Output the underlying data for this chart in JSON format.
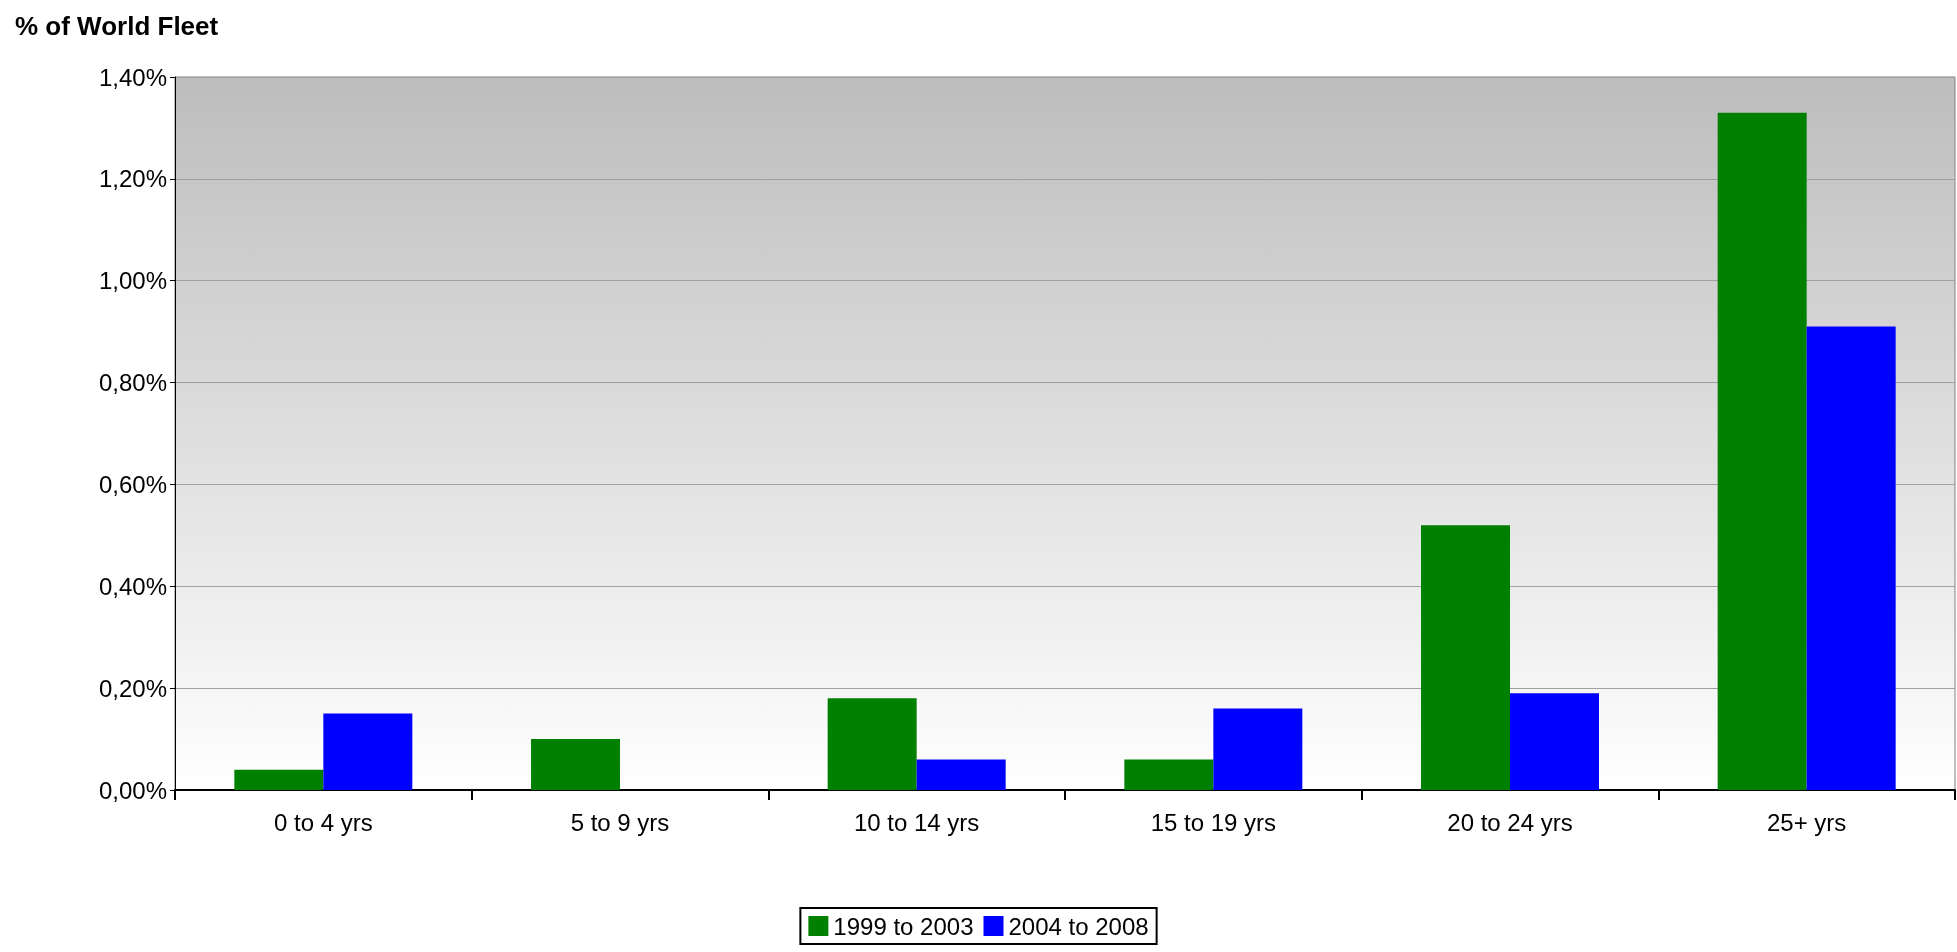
{
  "chart_data": {
    "type": "bar",
    "ylabel": "% of World Fleet",
    "categories": [
      "0 to 4 yrs",
      "5 to 9 yrs",
      "10 to 14 yrs",
      "15 to 19 yrs",
      "20 to 24 yrs",
      "25+ yrs"
    ],
    "series": [
      {
        "name": "1999 to 2003",
        "color": "#008000",
        "values": [
          0.04,
          0.1,
          0.18,
          0.06,
          0.52,
          1.33
        ]
      },
      {
        "name": "2004 to 2008",
        "color": "#0000ff",
        "values": [
          0.15,
          0,
          0.06,
          0.16,
          0.19,
          0.91
        ]
      }
    ],
    "ylim": [
      0,
      1.4
    ],
    "yticks": [
      {
        "value": 0,
        "label": "0,00%"
      },
      {
        "value": 0.2,
        "label": "0,20%"
      },
      {
        "value": 0.4,
        "label": "0,40%"
      },
      {
        "value": 0.6,
        "label": "0,60%"
      },
      {
        "value": 0.8,
        "label": "0,80%"
      },
      {
        "value": 1.0,
        "label": "1,00%"
      },
      {
        "value": 1.2,
        "label": "1,20%"
      },
      {
        "value": 1.4,
        "label": "1,40%"
      }
    ],
    "grid": "y",
    "legend": "bottom"
  }
}
